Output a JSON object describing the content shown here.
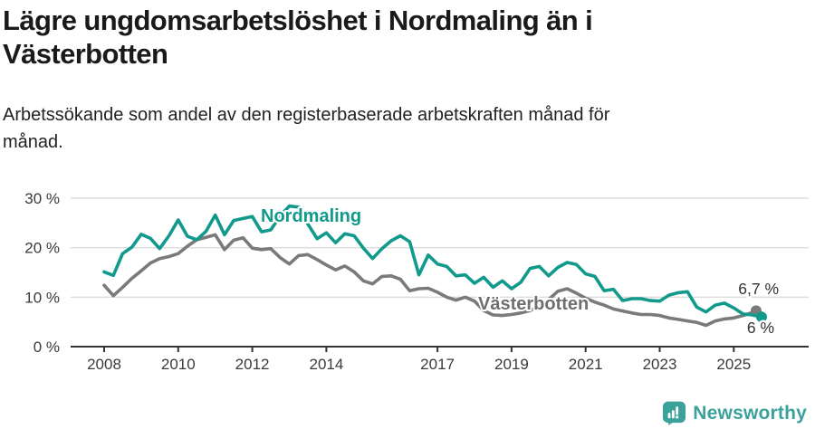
{
  "header": {
    "title_line1": "Lägre ungdomsarbetslöshet i Nordmaling än i",
    "title_line2": "Västerbotten",
    "subtitle_line1": "Arbetssökande som andel av den registerbaserade arbetskraften månad för",
    "subtitle_line2": "månad."
  },
  "chart_data": {
    "type": "line",
    "title": "Lägre ungdomsarbetslöshet i Nordmaling än i Västerbotten",
    "subtitle": "Arbetssökande som andel av den registerbaserade arbetskraften månad för månad.",
    "unit": "%",
    "grid": "horizontal",
    "legend": "inline-labels",
    "ylim": [
      0,
      32
    ],
    "yticks": [
      0,
      10,
      20,
      30
    ],
    "ytick_labels": [
      "0 %",
      "10 %",
      "20 %",
      "30 %"
    ],
    "xticks": [
      2008,
      2010,
      2012,
      2014,
      2017,
      2019,
      2021,
      2023,
      2025
    ],
    "x": [
      2008,
      2008.25,
      2008.5,
      2008.75,
      2009,
      2009.25,
      2009.5,
      2009.75,
      2010,
      2010.25,
      2010.5,
      2010.75,
      2011,
      2011.25,
      2011.5,
      2011.75,
      2012,
      2012.25,
      2012.5,
      2012.75,
      2013,
      2013.25,
      2013.5,
      2013.75,
      2014,
      2014.25,
      2014.5,
      2014.75,
      2015,
      2015.25,
      2015.5,
      2015.75,
      2016,
      2016.25,
      2016.5,
      2016.75,
      2017,
      2017.25,
      2017.5,
      2017.75,
      2018,
      2018.25,
      2018.5,
      2018.75,
      2019,
      2019.25,
      2019.5,
      2019.75,
      2020,
      2020.25,
      2020.5,
      2020.75,
      2021,
      2021.25,
      2021.5,
      2021.75,
      2022,
      2022.25,
      2022.5,
      2022.75,
      2023,
      2023.25,
      2023.5,
      2023.75,
      2024,
      2024.25,
      2024.5,
      2024.75,
      2025,
      2025.25,
      2025.5,
      2025.75
    ],
    "series": [
      {
        "name": "Nordmaling",
        "color": "#119a8c",
        "end_label": "6 %",
        "end_value": 6.0,
        "values": [
          15.1,
          14.4,
          18.8,
          20.1,
          22.7,
          21.9,
          19.8,
          22.4,
          25.6,
          22.3,
          21.6,
          23.3,
          26.6,
          22.6,
          25.5,
          25.9,
          26.3,
          23.2,
          23.6,
          26.4,
          28.4,
          28.2,
          24.8,
          21.8,
          23.0,
          21.0,
          22.8,
          22.4,
          19.9,
          17.8,
          19.8,
          21.4,
          22.4,
          21.2,
          14.5,
          18.5,
          16.7,
          16.2,
          14.3,
          14.5,
          12.8,
          14.0,
          12.0,
          13.3,
          11.7,
          13.0,
          15.8,
          16.2,
          14.3,
          16.0,
          17.0,
          16.6,
          14.7,
          14.2,
          11.3,
          11.6,
          9.3,
          9.7,
          9.7,
          9.3,
          9.2,
          10.4,
          10.9,
          11.1,
          8.0,
          7.0,
          8.4,
          8.8,
          7.8,
          6.6,
          6.4,
          6.0
        ]
      },
      {
        "name": "Västerbotten",
        "color": "#7a7a7a",
        "end_label": "6,7 %",
        "end_value": 6.7,
        "values": [
          12.4,
          10.3,
          12.0,
          13.8,
          15.3,
          16.9,
          17.8,
          18.2,
          18.8,
          20.3,
          21.6,
          22.1,
          22.6,
          19.6,
          21.5,
          22.0,
          19.9,
          19.6,
          19.8,
          18.0,
          16.7,
          18.4,
          18.6,
          17.6,
          16.5,
          15.5,
          16.3,
          15.1,
          13.3,
          12.7,
          14.2,
          14.3,
          13.6,
          11.3,
          11.7,
          11.8,
          11.0,
          10.0,
          9.4,
          10.0,
          9.2,
          7.3,
          6.4,
          6.3,
          6.5,
          6.8,
          7.3,
          8.2,
          9.5,
          11.2,
          11.7,
          10.8,
          9.8,
          9.0,
          8.4,
          7.6,
          7.2,
          6.8,
          6.5,
          6.5,
          6.3,
          5.8,
          5.5,
          5.2,
          4.9,
          4.3,
          5.2,
          5.6,
          5.8,
          6.3,
          6.9,
          6.7
        ]
      }
    ]
  },
  "footer": {
    "brand": "Newsworthy",
    "logo_icon": "bar-chart-speech-bubble-icon",
    "brand_color": "#3aa19b"
  },
  "colors": {
    "nordmaling_line": "#119a8c",
    "vasterbotten_line": "#7a7a7a",
    "gridline": "#dcdcdc",
    "axis": "#333333",
    "title_text": "#1a1a1a"
  }
}
